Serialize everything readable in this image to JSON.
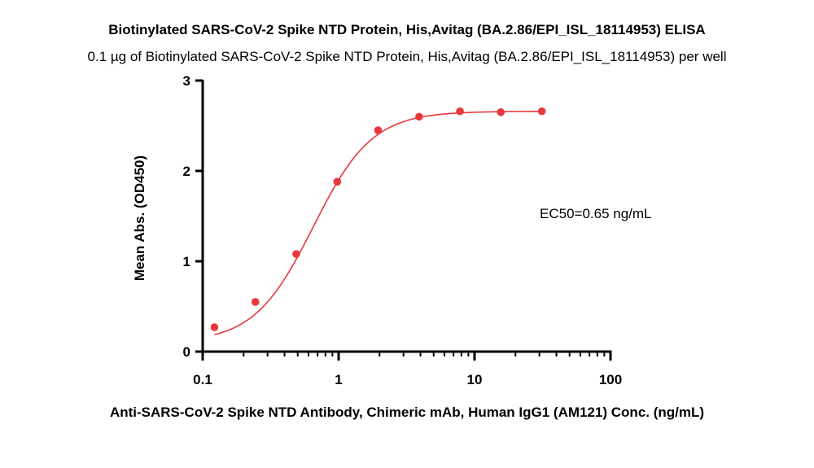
{
  "chart_data": {
    "type": "scatter",
    "title": "Biotinylated SARS-CoV-2 Spike NTD Protein, His,Avitag (BA.2.86/EPI_ISL_18114953) ELISA",
    "subtitle": "0.1 µg of Biotinylated SARS-CoV-2 Spike NTD Protein, His,Avitag (BA.2.86/EPI_ISL_18114953) per well",
    "xlabel": "Anti-SARS-CoV-2 Spike NTD Antibody, Chimeric mAb, Human IgG1 (AM121) Conc. (ng/mL)",
    "ylabel": "Mean Abs. (OD450)",
    "xscale": "log",
    "xlim": [
      0.1,
      100
    ],
    "ylim": [
      0,
      3
    ],
    "xticks": [
      "0.1",
      "1",
      "10",
      "100"
    ],
    "yticks": [
      "0",
      "1",
      "2",
      "3"
    ],
    "annotation": "EC50=0.65 ng/mL",
    "grid": false,
    "color": "#e8383d",
    "series": [
      {
        "x": [
          0.122,
          0.244,
          0.488,
          0.977,
          1.95,
          3.91,
          7.81,
          15.6,
          31.25
        ],
        "y": [
          0.27,
          0.55,
          1.08,
          1.88,
          2.45,
          2.6,
          2.66,
          2.65,
          2.66
        ]
      }
    ],
    "fit": {
      "model": "4PL",
      "bottom": 0.1,
      "top": 2.66,
      "ec50": 0.65,
      "hill": 2.0
    }
  }
}
